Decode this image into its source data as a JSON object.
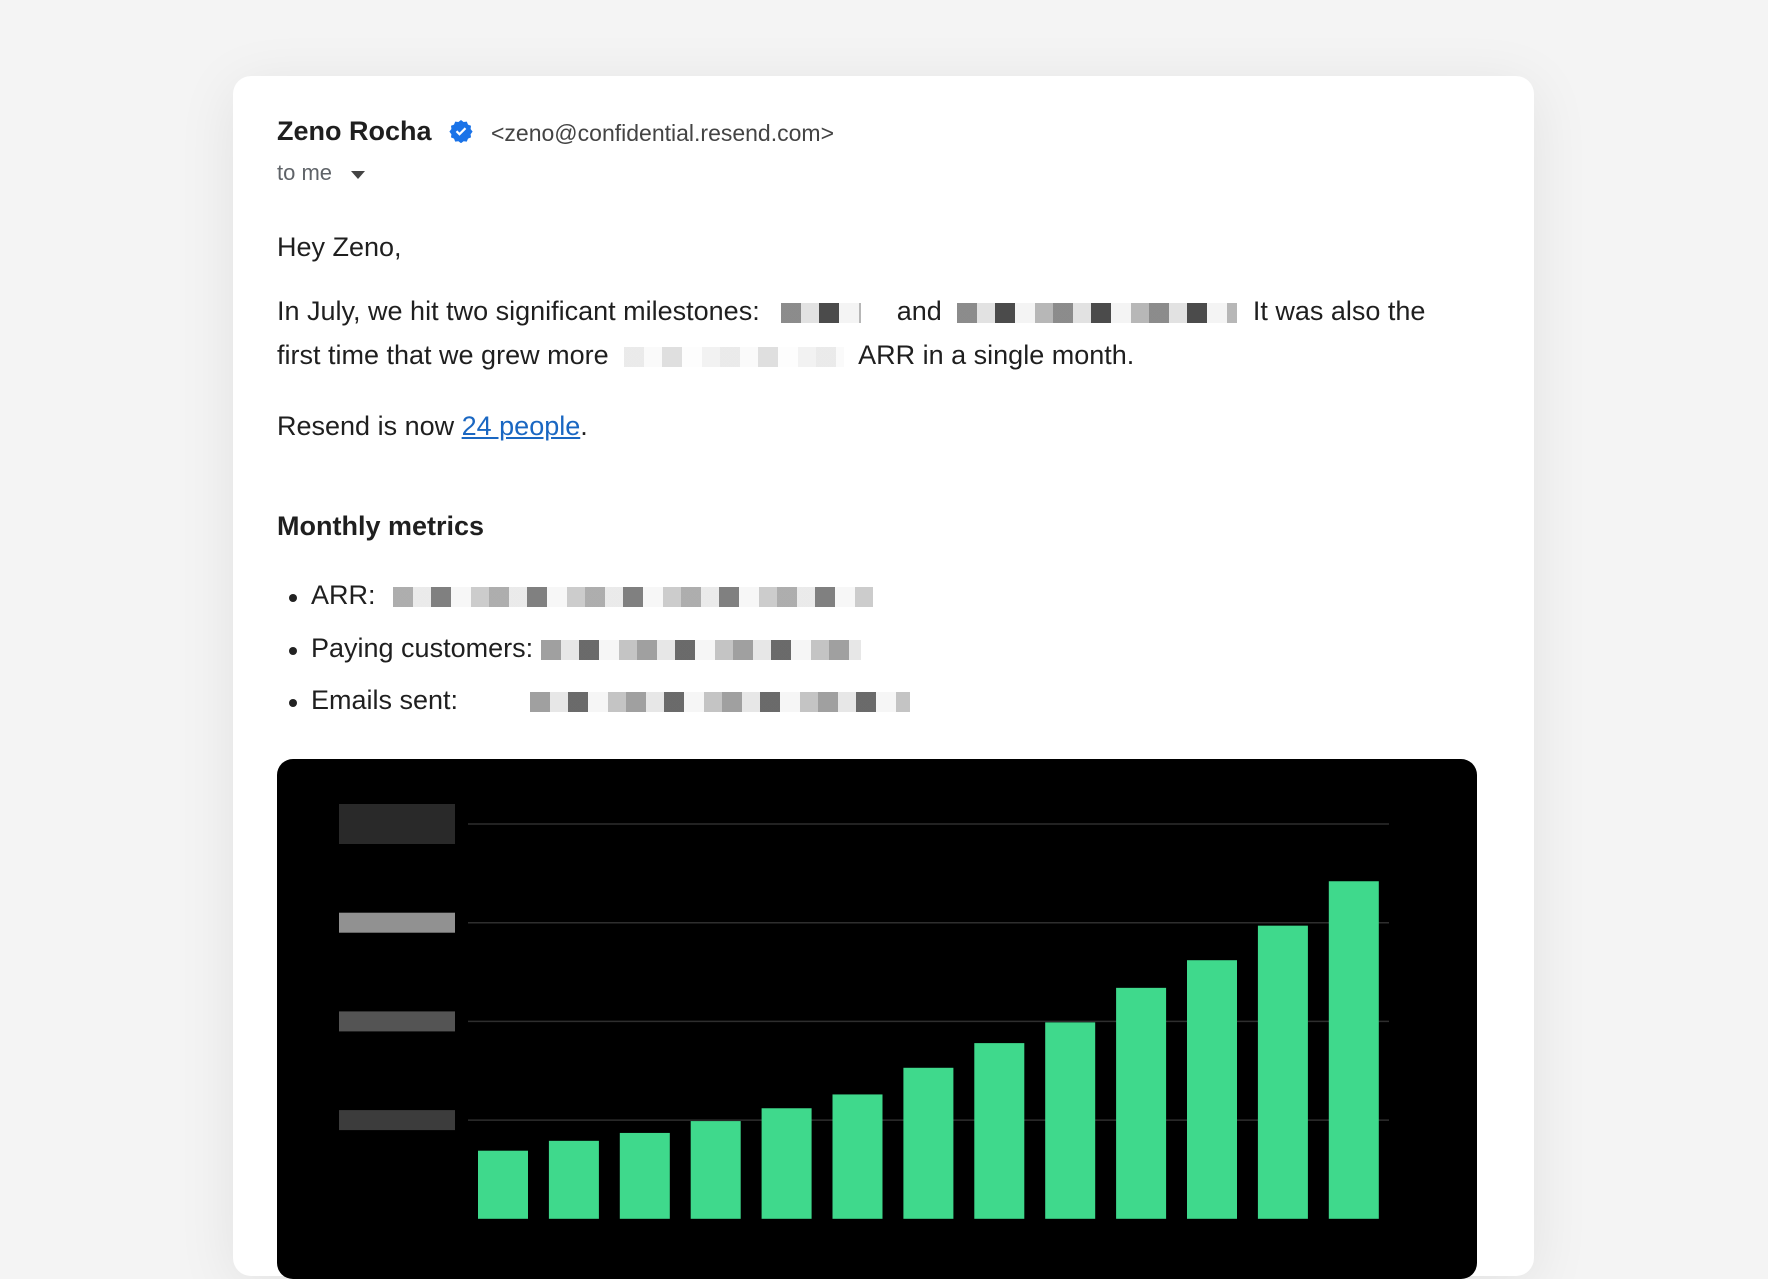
{
  "email": {
    "sender_name": "Zeno Rocha",
    "sender_verified_icon": "verified-badge-icon",
    "sender_address": "<zeno@confidential.resend.com>",
    "recipient_label": "to me",
    "recipient_toggle_icon": "caret-down-icon",
    "body": {
      "greeting": "Hey Zeno,",
      "p1_start": "In July, we hit two significant milestones:",
      "p1_and": "and",
      "p1_end": "It was also the",
      "p2_start": "first time that we grew more",
      "p2_end": "ARR in a single month.",
      "p3_start": "Resend is now",
      "p3_link": "24 people",
      "p3_end": ".",
      "metrics_heading": "Monthly metrics",
      "metrics": [
        {
          "label": "ARR:"
        },
        {
          "label": "Paying customers:"
        },
        {
          "label": "Emails sent:"
        }
      ]
    }
  },
  "colors": {
    "bar": "#3fd98c",
    "chart_bg": "#000000",
    "link": "#1a67c2",
    "verified": "#1a73e8"
  },
  "chart_data": {
    "type": "bar",
    "title": "",
    "xlabel": "",
    "ylabel": "",
    "y_tick_labels_redacted": true,
    "grid": true,
    "values": [
      0.69,
      0.79,
      0.87,
      0.99,
      1.12,
      1.26,
      1.53,
      1.78,
      1.99,
      2.34,
      2.62,
      2.97,
      3.42
    ],
    "ylim": [
      0,
      4
    ]
  }
}
